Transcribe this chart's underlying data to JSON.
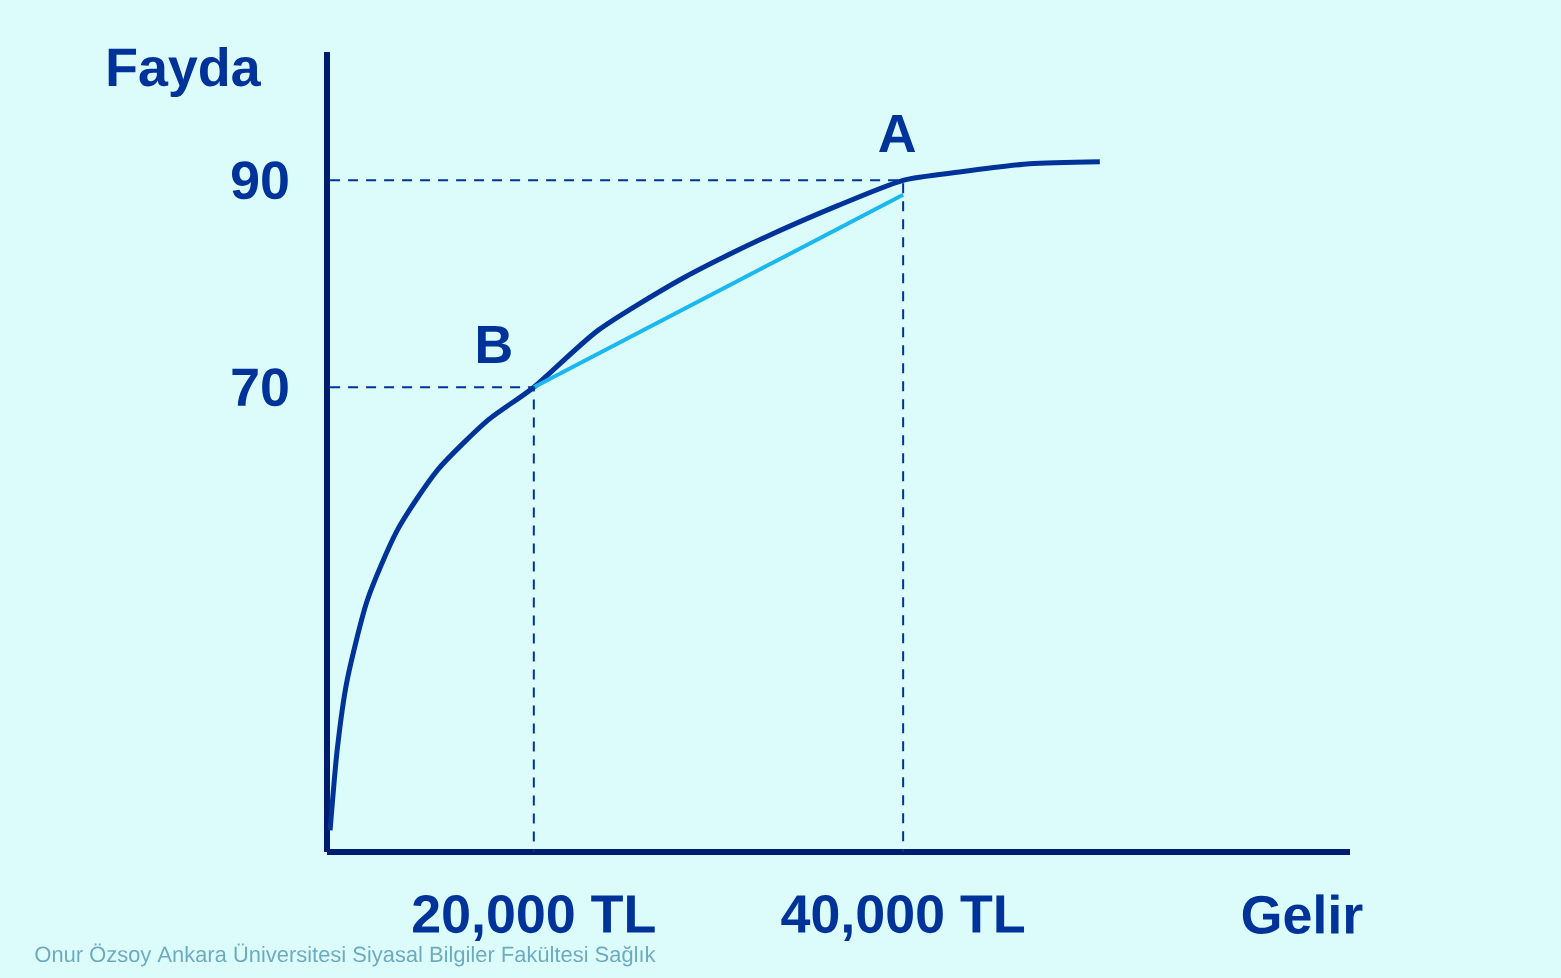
{
  "chart_data": {
    "type": "line",
    "xlabel": "Gelir",
    "ylabel": "Fayda",
    "xlim": [
      8800,
      64200
    ],
    "ylim": [
      25.1,
      102.4
    ],
    "xticks": [
      {
        "value": 20000,
        "label": "20,000 TL"
      },
      {
        "value": 40000,
        "label": "40,000 TL"
      }
    ],
    "yticks": [
      70,
      90
    ],
    "marker": "none",
    "grid": false,
    "series": [
      {
        "color": "#003399",
        "line_style": "solid",
        "x": [
          8967,
          9348,
          9891,
          10978,
          12609,
          14783,
          17500,
          20000,
          23478,
          27826,
          32174,
          36522,
          40000,
          43043,
          46848,
          50652
        ],
        "values": [
          27.2,
          34.9,
          41.7,
          49.4,
          56.2,
          62.0,
          66.8,
          70,
          75.5,
          80.3,
          84.2,
          87.6,
          90,
          90.8,
          91.6,
          91.8
        ]
      },
      {
        "color": "#1ab8f0",
        "line_style": "solid",
        "x": [
          20000,
          40000
        ],
        "values": [
          70,
          88.6
        ]
      },
      {
        "color": "#003399",
        "line_style": "dashed",
        "x": [
          8967,
          40000,
          40000
        ],
        "values": [
          90,
          90,
          25.1
        ]
      },
      {
        "color": "#003399",
        "line_style": "dashed",
        "x": [
          8967,
          20000,
          20000
        ],
        "values": [
          70,
          70,
          25.1
        ]
      }
    ],
    "annotations": [
      {
        "text": "A",
        "x": 40000,
        "y": 90
      },
      {
        "text": "B",
        "x": 20000,
        "y": 70
      },
      "Onur Özsoy  Ankara Üniversitesi  Siyasal Bilgiler Fakültesi Sağlık"
    ]
  }
}
